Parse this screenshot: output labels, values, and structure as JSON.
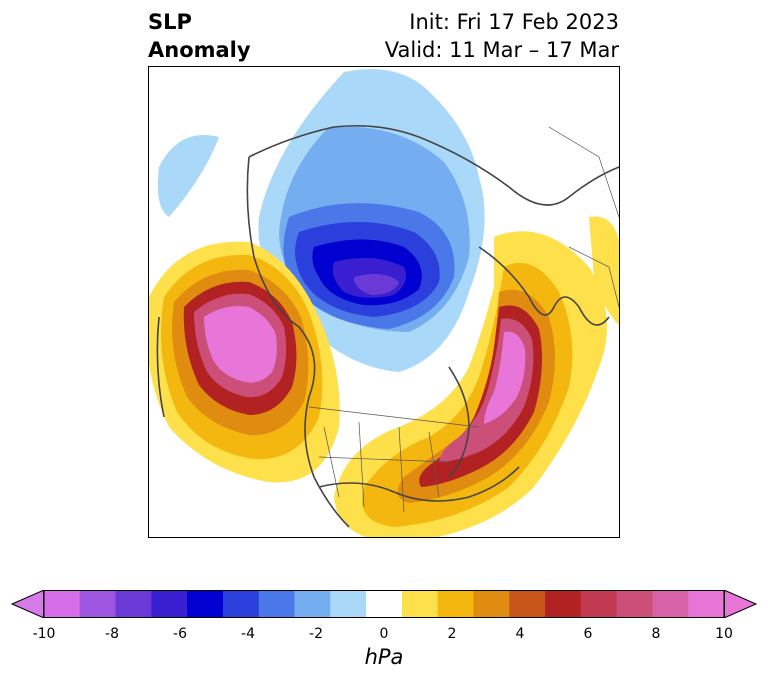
{
  "header": {
    "title_line1": "SLP",
    "title_line2": "Anomaly",
    "init": "Init: Fri 17 Feb 2023",
    "valid": "Valid: 11 Mar – 17 Mar"
  },
  "colorbar": {
    "units": "hPa",
    "min": -10,
    "max": 10,
    "extend": "both",
    "ticks": [
      "-10",
      "-8",
      "-6",
      "-4",
      "-2",
      "0",
      "2",
      "4",
      "6",
      "8",
      "10"
    ],
    "levels": [
      -10,
      -9,
      -8,
      -7,
      -6,
      -5,
      -4,
      -3,
      -2,
      -1,
      1,
      2,
      3,
      4,
      5,
      6,
      7,
      8,
      9,
      10
    ],
    "colors": [
      "#d56ee8",
      "#9e55e0",
      "#6b3ad6",
      "#3a1fd0",
      "#0000d0",
      "#2a3fdc",
      "#4b78e8",
      "#74aef0",
      "#aad8f8",
      "#ffffff",
      "#fde04a",
      "#f4b710",
      "#e08c10",
      "#c8561a",
      "#b22222",
      "#c23a52",
      "#cc4f7a",
      "#d862a8",
      "#e876d8"
    ],
    "low_extend_color": "#d57ae8",
    "high_extend_color": "#e876d8"
  },
  "map": {
    "projection": "north-polar stereographic",
    "features": [
      "coastlines",
      "country borders",
      "US state borders"
    ],
    "anomalies": [
      {
        "sign": "negative",
        "region": "Arctic / northern Siberia",
        "peak": -7
      },
      {
        "sign": "positive",
        "region": "North Pacific / Gulf of Alaska",
        "peak": 10
      },
      {
        "sign": "positive",
        "region": "North Atlantic / eastern Canada",
        "peak": 10
      },
      {
        "sign": "positive",
        "region": "Scandinavia / northern Europe",
        "peak": 3
      }
    ]
  }
}
